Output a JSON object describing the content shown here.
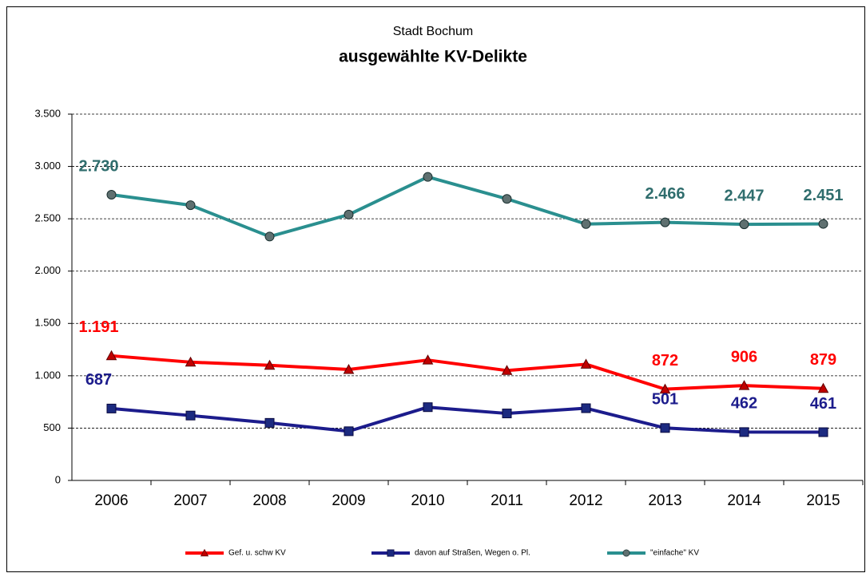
{
  "chart_data": {
    "type": "line",
    "title": "Stadt Bochum",
    "subtitle": "ausgewählte KV-Delikte",
    "categories": [
      "2006",
      "2007",
      "2008",
      "2009",
      "2010",
      "2011",
      "2012",
      "2013",
      "2014",
      "2015"
    ],
    "series": [
      {
        "name": "Gef. u. schw KV",
        "color": "#ff0000",
        "marker": "triangle",
        "values": [
          1191,
          1130,
          1100,
          1060,
          1150,
          1050,
          1110,
          872,
          906,
          879
        ],
        "value_labels": [
          "1.191",
          null,
          null,
          null,
          null,
          null,
          null,
          "872",
          "906",
          "879"
        ]
      },
      {
        "name": "davon auf Straßen, Wegen o. Pl.",
        "color": "#1c1c8c",
        "marker": "square",
        "values": [
          687,
          620,
          550,
          470,
          700,
          640,
          690,
          501,
          462,
          461
        ],
        "value_labels": [
          "687",
          null,
          null,
          null,
          null,
          null,
          null,
          "501",
          "462",
          "461"
        ]
      },
      {
        "name": "\"einfache\" KV",
        "color": "#2a8f8f",
        "marker": "circle",
        "values": [
          2730,
          2630,
          2330,
          2540,
          2900,
          2690,
          2450,
          2466,
          2447,
          2451
        ],
        "value_labels": [
          "2.730",
          null,
          null,
          null,
          null,
          null,
          null,
          "2.466",
          "2.447",
          "2.451"
        ]
      }
    ],
    "ylim": [
      0,
      3500
    ],
    "yticks": [
      0,
      500,
      {
        "value": 1000,
        "label": "1.000"
      },
      {
        "value": 1500,
        "label": "1.500"
      },
      {
        "value": 2000,
        "label": "2.000"
      },
      {
        "value": 2500,
        "label": "2.500"
      },
      {
        "value": 3000,
        "label": "3.000"
      },
      {
        "value": 3500,
        "label": "3.500"
      }
    ],
    "grid": true,
    "legend": "bottom"
  }
}
